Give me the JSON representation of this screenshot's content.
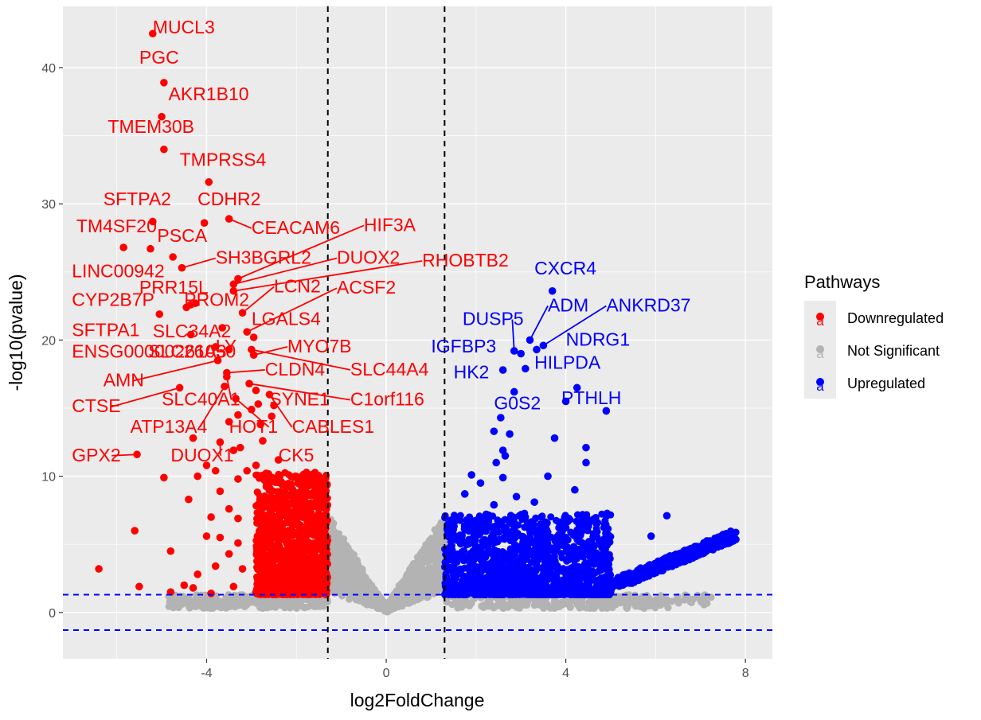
{
  "chart_data": {
    "type": "scatter",
    "xlabel": "log2FoldChange",
    "ylabel": "-log10(pvalue)",
    "xlim": [
      -7.2,
      8.6
    ],
    "ylim": [
      -3.4,
      44.5
    ],
    "xticks": [
      -4,
      0,
      4,
      8
    ],
    "yticks": [
      0,
      10,
      20,
      30,
      40
    ],
    "grid": true,
    "legend_position": "right",
    "legend_title": "Pathways",
    "legend": [
      {
        "name": "Downregulated",
        "color": "#ff0000",
        "key_glyph": "a"
      },
      {
        "name": "Not Significant",
        "color": "#b3b3b3",
        "key_glyph": "a"
      },
      {
        "name": "Upregulated",
        "color": "#0000ff",
        "key_glyph": "a"
      }
    ],
    "vlines": [
      -1.3,
      1.3
    ],
    "hlines": [
      1.3,
      -1.3
    ],
    "colors": {
      "down": "#ff0000",
      "ns": "#b3b3b3",
      "up": "#0000ff",
      "panel": "#ebebeb",
      "grid": "#ffffff"
    },
    "series": [
      {
        "name": "Downregulated",
        "color": "#ff0000",
        "points": [
          [
            -5.2,
            42.5
          ],
          [
            -4.95,
            38.9
          ],
          [
            -5.0,
            36.4
          ],
          [
            -4.95,
            34.0
          ],
          [
            -3.95,
            31.6
          ],
          [
            -5.2,
            28.7
          ],
          [
            -4.05,
            28.6
          ],
          [
            -3.5,
            28.9
          ],
          [
            -5.85,
            26.8
          ],
          [
            -5.25,
            26.7
          ],
          [
            -4.75,
            26.1
          ],
          [
            -4.55,
            25.3
          ],
          [
            -3.3,
            24.5
          ],
          [
            -3.4,
            24.1
          ],
          [
            -3.4,
            23.6
          ],
          [
            -5.05,
            21.9
          ],
          [
            -4.35,
            22.6
          ],
          [
            -4.45,
            22.4
          ],
          [
            -4.25,
            22.7
          ],
          [
            -3.2,
            22.0
          ],
          [
            -4.35,
            20.4
          ],
          [
            -3.65,
            20.9
          ],
          [
            -3.1,
            20.6
          ],
          [
            -2.95,
            20.2
          ],
          [
            -3.8,
            19.5
          ],
          [
            -3.5,
            19.3
          ],
          [
            -3.0,
            19.3
          ],
          [
            -2.95,
            18.9
          ],
          [
            -3.75,
            18.5
          ],
          [
            -3.55,
            17.6
          ],
          [
            -3.55,
            17.3
          ],
          [
            -3.05,
            16.8
          ],
          [
            -3.6,
            16.6
          ],
          [
            -2.9,
            16.3
          ],
          [
            -4.6,
            16.5
          ],
          [
            -2.6,
            16.0
          ],
          [
            -3.35,
            15.7
          ],
          [
            -2.85,
            15.3
          ],
          [
            -2.5,
            15.2
          ],
          [
            -3.0,
            14.9
          ],
          [
            -3.3,
            14.5
          ],
          [
            -2.55,
            14.4
          ],
          [
            -3.5,
            14.0
          ],
          [
            -2.8,
            13.8
          ],
          [
            -4.3,
            12.8
          ],
          [
            -3.7,
            12.5
          ],
          [
            -3.4,
            11.9
          ],
          [
            -3.25,
            12.1
          ],
          [
            -2.75,
            12.6
          ],
          [
            -5.55,
            11.6
          ],
          [
            -4.0,
            10.8
          ],
          [
            -3.8,
            10.4
          ],
          [
            -4.2,
            10.0
          ],
          [
            -4.95,
            9.9
          ],
          [
            -3.3,
            9.8
          ],
          [
            -3.1,
            10.4
          ],
          [
            -2.9,
            10.8
          ],
          [
            -2.4,
            11.2
          ],
          [
            -3.7,
            8.9
          ],
          [
            -4.4,
            8.3
          ],
          [
            -3.5,
            7.6
          ],
          [
            -3.9,
            7.0
          ],
          [
            -3.3,
            6.9
          ],
          [
            -5.6,
            6.0
          ],
          [
            -4.0,
            5.6
          ],
          [
            -3.7,
            5.5
          ],
          [
            -3.3,
            5.1
          ],
          [
            -4.8,
            4.5
          ],
          [
            -3.5,
            4.3
          ],
          [
            -3.8,
            3.4
          ],
          [
            -3.2,
            3.2
          ],
          [
            -4.2,
            2.8
          ],
          [
            -6.4,
            3.2
          ],
          [
            -4.5,
            2.0
          ],
          [
            -5.5,
            1.9
          ],
          [
            -4.3,
            1.8
          ],
          [
            -4.8,
            1.5
          ],
          [
            -3.9,
            1.4
          ],
          [
            -3.4,
            1.9
          ],
          [
            -2.9,
            1.5
          ]
        ]
      },
      {
        "name": "Upregulated",
        "color": "#0000ff",
        "points": [
          [
            3.7,
            23.6
          ],
          [
            3.2,
            20.0
          ],
          [
            3.5,
            19.6
          ],
          [
            2.85,
            19.2
          ],
          [
            3.0,
            19.0
          ],
          [
            3.35,
            19.3
          ],
          [
            2.6,
            17.8
          ],
          [
            3.1,
            17.9
          ],
          [
            4.25,
            16.5
          ],
          [
            2.85,
            16.2
          ],
          [
            4.0,
            15.5
          ],
          [
            4.9,
            14.8
          ],
          [
            2.55,
            14.3
          ],
          [
            2.4,
            13.3
          ],
          [
            2.75,
            13.1
          ],
          [
            3.75,
            12.8
          ],
          [
            4.45,
            12.1
          ],
          [
            2.6,
            11.9
          ],
          [
            4.45,
            11.0
          ],
          [
            2.45,
            11.0
          ],
          [
            2.65,
            11.5
          ],
          [
            1.9,
            10.1
          ],
          [
            2.1,
            9.5
          ],
          [
            3.6,
            10.0
          ],
          [
            2.6,
            9.9
          ],
          [
            1.75,
            8.7
          ],
          [
            4.2,
            9.0
          ],
          [
            2.9,
            8.5
          ],
          [
            3.3,
            8.1
          ],
          [
            2.4,
            7.9
          ],
          [
            6.25,
            7.1
          ],
          [
            4.65,
            6.7
          ],
          [
            5.9,
            5.6
          ],
          [
            3.95,
            6.3
          ],
          [
            1.8,
            6.8
          ]
        ]
      }
    ],
    "labels": [
      {
        "text": "MUCL3",
        "x": -5.2,
        "y": 42.5,
        "lx": -5.2,
        "ly": 42.5,
        "color": "#ff0000"
      },
      {
        "text": "PGC",
        "x": -4.95,
        "y": 38.9,
        "lx": -5.5,
        "ly": 40.3,
        "color": "#ff0000"
      },
      {
        "text": "AKR1B10",
        "x": -5.0,
        "y": 36.4,
        "lx": -4.85,
        "ly": 37.6,
        "color": "#ff0000"
      },
      {
        "text": "TMEM30B",
        "x": -4.95,
        "y": 34.0,
        "lx": -6.2,
        "ly": 35.2,
        "color": "#ff0000"
      },
      {
        "text": "TMPRSS4",
        "x": -3.95,
        "y": 31.6,
        "lx": -4.6,
        "ly": 32.8,
        "color": "#ff0000"
      },
      {
        "text": "SFTPA2",
        "x": -5.2,
        "y": 28.7,
        "lx": -6.3,
        "ly": 29.9,
        "color": "#ff0000"
      },
      {
        "text": "CDHR2",
        "x": -4.05,
        "y": 28.6,
        "lx": -4.2,
        "ly": 29.9,
        "color": "#ff0000"
      },
      {
        "text": "CEACAM6",
        "x": -3.5,
        "y": 28.9,
        "lx": -3.0,
        "ly": 27.8,
        "color": "#ff0000",
        "leader": true
      },
      {
        "text": "HIF3A",
        "x": -3.3,
        "y": 24.5,
        "lx": -0.5,
        "ly": 28.0,
        "color": "#ff0000",
        "leader": true
      },
      {
        "text": "TM4SF20",
        "x": -5.85,
        "y": 26.8,
        "lx": -6.9,
        "ly": 27.9,
        "color": "#ff0000"
      },
      {
        "text": "PSCA",
        "x": -4.75,
        "y": 26.1,
        "lx": -5.1,
        "ly": 27.2,
        "color": "#ff0000"
      },
      {
        "text": "SH3BGRL2",
        "x": -4.55,
        "y": 25.3,
        "lx": -3.8,
        "ly": 25.6,
        "color": "#ff0000",
        "leader": true
      },
      {
        "text": "DUOX2",
        "x": -3.4,
        "y": 24.1,
        "lx": -1.1,
        "ly": 25.6,
        "color": "#ff0000",
        "leader": true
      },
      {
        "text": "RHOBTB2",
        "x": -3.4,
        "y": 23.6,
        "lx": 0.8,
        "ly": 25.4,
        "color": "#ff0000",
        "leader": true
      },
      {
        "text": "LINC00942",
        "x": -4.55,
        "y": 25.3,
        "lx": -7.0,
        "ly": 24.6,
        "color": "#ff0000"
      },
      {
        "text": "PRR15L",
        "x": -4.35,
        "y": 22.6,
        "lx": -5.5,
        "ly": 23.4,
        "color": "#ff0000"
      },
      {
        "text": "LCN2",
        "x": -3.2,
        "y": 22.0,
        "lx": -2.5,
        "ly": 23.5,
        "color": "#ff0000",
        "leader": true
      },
      {
        "text": "CYP2B7P",
        "x": -5.05,
        "y": 21.9,
        "lx": -7.0,
        "ly": 22.5,
        "color": "#ff0000"
      },
      {
        "text": "PROM2",
        "x": -4.45,
        "y": 22.4,
        "lx": -4.5,
        "ly": 22.5,
        "color": "#ff0000"
      },
      {
        "text": "ACSF2",
        "x": -3.1,
        "y": 20.6,
        "lx": -1.1,
        "ly": 23.4,
        "color": "#ff0000",
        "leader": true
      },
      {
        "text": "SFTPA1",
        "x": -4.35,
        "y": 20.4,
        "lx": -7.0,
        "ly": 20.3,
        "color": "#ff0000"
      },
      {
        "text": "SLC34A2",
        "x": -3.65,
        "y": 20.9,
        "lx": -5.2,
        "ly": 20.2,
        "color": "#ff0000"
      },
      {
        "text": "LGALS4",
        "x": -2.95,
        "y": 20.2,
        "lx": -3.0,
        "ly": 21.1,
        "color": "#ff0000"
      },
      {
        "text": "MYO7B",
        "x": -2.95,
        "y": 18.9,
        "lx": -2.2,
        "ly": 19.1,
        "color": "#ff0000",
        "leader": true
      },
      {
        "text": "LY",
        "x": -3.5,
        "y": 19.3,
        "lx": -3.8,
        "ly": 19.1,
        "color": "#ff0000"
      },
      {
        "text": "ENSG00000261050",
        "x": -3.55,
        "y": 17.6,
        "lx": -7.0,
        "ly": 18.7,
        "color": "#ff0000"
      },
      {
        "text": "SLC26A3",
        "x": -3.55,
        "y": 17.3,
        "lx": -5.3,
        "ly": 18.7,
        "color": "#ff0000"
      },
      {
        "text": "SLC44A4",
        "x": -3.0,
        "y": 19.3,
        "lx": -0.8,
        "ly": 17.4,
        "color": "#ff0000",
        "leader": true
      },
      {
        "text": "CLDN4",
        "x": -3.55,
        "y": 17.6,
        "lx": -2.7,
        "ly": 17.4,
        "color": "#ff0000",
        "leader": true
      },
      {
        "text": "AMN",
        "x": -3.75,
        "y": 18.5,
        "lx": -6.3,
        "ly": 16.6,
        "color": "#ff0000",
        "leader": true
      },
      {
        "text": "C1orf116",
        "x": -3.05,
        "y": 16.8,
        "lx": -0.8,
        "ly": 15.2,
        "color": "#ff0000",
        "leader": true
      },
      {
        "text": "SLC40A1",
        "x": -3.55,
        "y": 17.3,
        "lx": -5.0,
        "ly": 15.2,
        "color": "#ff0000",
        "leader": true
      },
      {
        "text": "SYNE1",
        "x": -2.9,
        "y": 16.3,
        "lx": -2.6,
        "ly": 15.2,
        "color": "#ff0000"
      },
      {
        "text": "CTSE",
        "x": -4.6,
        "y": 16.5,
        "lx": -7.0,
        "ly": 14.7,
        "color": "#ff0000",
        "leader": true
      },
      {
        "text": "CABLES1",
        "x": -2.6,
        "y": 16.0,
        "lx": -2.1,
        "ly": 13.2,
        "color": "#ff0000",
        "leader": true
      },
      {
        "text": "ATP13A4",
        "x": -3.6,
        "y": 16.6,
        "lx": -5.7,
        "ly": 13.2,
        "color": "#ff0000",
        "leader": true
      },
      {
        "text": "HOT1",
        "x": -3.35,
        "y": 15.7,
        "lx": -3.5,
        "ly": 13.2,
        "color": "#ff0000",
        "leader": true
      },
      {
        "text": "GPX2",
        "x": -5.55,
        "y": 11.6,
        "lx": -7.0,
        "ly": 11.1,
        "color": "#ff0000",
        "leader": true
      },
      {
        "text": "DUOX1",
        "x": -3.7,
        "y": 12.5,
        "lx": -4.8,
        "ly": 11.1,
        "color": "#ff0000",
        "leader": true
      },
      {
        "text": "CK5",
        "x": -2.4,
        "y": 11.2,
        "lx": -2.4,
        "ly": 11.1,
        "color": "#ff0000"
      },
      {
        "text": "CXCR4",
        "x": 3.7,
        "y": 23.6,
        "lx": 3.3,
        "ly": 24.8,
        "color": "#0000ff"
      },
      {
        "text": "ADM",
        "x": 3.2,
        "y": 20.0,
        "lx": 3.6,
        "ly": 22.1,
        "color": "#0000ff",
        "leader": true
      },
      {
        "text": "ANKRD37",
        "x": 3.5,
        "y": 19.6,
        "lx": 4.9,
        "ly": 22.1,
        "color": "#0000ff",
        "leader": true
      },
      {
        "text": "DUSP5",
        "x": 2.85,
        "y": 19.2,
        "lx": 1.7,
        "ly": 21.1,
        "color": "#0000ff",
        "leader": true
      },
      {
        "text": "NDRG1",
        "x": 3.35,
        "y": 19.3,
        "lx": 4.0,
        "ly": 19.6,
        "color": "#0000ff"
      },
      {
        "text": "IGFBP3",
        "x": 3.0,
        "y": 19.0,
        "lx": 1.0,
        "ly": 19.1,
        "color": "#0000ff"
      },
      {
        "text": "HILPDA",
        "x": 3.1,
        "y": 17.9,
        "lx": 3.3,
        "ly": 17.9,
        "color": "#0000ff"
      },
      {
        "text": "HK2",
        "x": 2.6,
        "y": 17.8,
        "lx": 1.5,
        "ly": 17.2,
        "color": "#0000ff"
      },
      {
        "text": "PTHLH",
        "x": 4.25,
        "y": 16.5,
        "lx": 3.9,
        "ly": 15.3,
        "color": "#0000ff"
      },
      {
        "text": "G0S2",
        "x": 2.85,
        "y": 16.2,
        "lx": 2.4,
        "ly": 14.9,
        "color": "#0000ff"
      }
    ]
  }
}
